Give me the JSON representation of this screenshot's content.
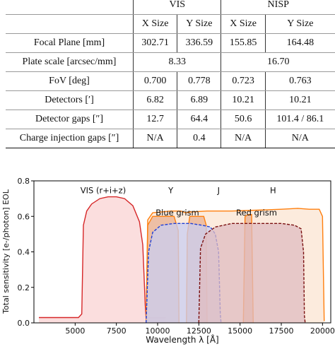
{
  "table": {
    "group_headers": [
      "VIS",
      "NISP"
    ],
    "sub_headers": [
      "X Size",
      "Y Size",
      "X Size",
      "Y Size"
    ],
    "rows": [
      {
        "label": "Focal Plane [mm]",
        "cells": [
          "302.71",
          "336.59",
          "155.85",
          "164.48"
        ]
      },
      {
        "label": "Plate scale [arcsec/mm]",
        "merged": [
          "8.33",
          "16.70"
        ]
      },
      {
        "label": "FoV [deg]",
        "cells": [
          "0.700",
          "0.778",
          "0.723",
          "0.763"
        ]
      },
      {
        "label": "Detectors [′]",
        "cells": [
          "6.82",
          "6.89",
          "10.21",
          "10.21"
        ]
      },
      {
        "label": "Detector gaps [″]",
        "cells": [
          "12.7",
          "64.4",
          "50.6",
          "101.4 / 86.1"
        ]
      },
      {
        "label": "Charge injection gaps [″]",
        "cells": [
          "N/A",
          "0.4",
          "N/A",
          "N/A"
        ]
      }
    ]
  },
  "chart_data": {
    "type": "area",
    "xlabel": "Wavelength λ [Å]",
    "ylabel": "Total sensitivity [e-/photon] EOL",
    "xlim": [
      2500,
      20500
    ],
    "ylim": [
      0,
      0.8
    ],
    "xticks": [
      5000,
      7500,
      10000,
      12500,
      15000,
      17500,
      20000
    ],
    "yticks": [
      0.0,
      0.2,
      0.4,
      0.6,
      0.8
    ],
    "tick_labels_y": [
      "0.0",
      "0.2",
      "0.4",
      "0.6",
      "0.8"
    ],
    "annotations": [
      {
        "text": "VIS (r+i+z)",
        "x": 6700,
        "y": 0.73
      },
      {
        "text": "Y",
        "x": 10800,
        "y": 0.73
      },
      {
        "text": "J",
        "x": 13700,
        "y": 0.73
      },
      {
        "text": "H",
        "x": 17000,
        "y": 0.73
      },
      {
        "text": "Blue grism",
        "x": 11200,
        "y": 0.605
      },
      {
        "text": "Red grism",
        "x": 16000,
        "y": 0.605
      }
    ],
    "series": [
      {
        "color": "#d62728",
        "fill": "#f9d3d3",
        "dash": false,
        "points": [
          [
            2800,
            0.03
          ],
          [
            4500,
            0.03
          ],
          [
            5200,
            0.03
          ],
          [
            5400,
            0.05
          ],
          [
            5500,
            0.55
          ],
          [
            5700,
            0.63
          ],
          [
            6000,
            0.67
          ],
          [
            6500,
            0.7
          ],
          [
            7000,
            0.71
          ],
          [
            7500,
            0.71
          ],
          [
            8000,
            0.7
          ],
          [
            8500,
            0.66
          ],
          [
            8900,
            0.57
          ],
          [
            9100,
            0.44
          ],
          [
            9200,
            0.22
          ],
          [
            9250,
            0.1
          ],
          [
            9300,
            0.03
          ],
          [
            10500,
            0.03
          ]
        ]
      },
      {
        "color": "#ff7f0e",
        "fill": "#fbe4d2",
        "dash": false,
        "points": [
          [
            9300,
            0.0
          ],
          [
            9400,
            0.58
          ],
          [
            9700,
            0.62
          ],
          [
            10800,
            0.63
          ],
          [
            11400,
            0.63
          ],
          [
            11700,
            0.62
          ],
          [
            12000,
            0.625
          ],
          [
            13000,
            0.63
          ],
          [
            14500,
            0.63
          ],
          [
            16000,
            0.635
          ],
          [
            17500,
            0.64
          ],
          [
            18500,
            0.645
          ],
          [
            19200,
            0.64
          ],
          [
            19800,
            0.64
          ],
          [
            20000,
            0.6
          ],
          [
            20100,
            0.01
          ]
        ]
      },
      {
        "color": "#ff7f0e",
        "fill": "#e8b091",
        "dash": false,
        "points": [
          [
            9300,
            0.0
          ],
          [
            9400,
            0.55
          ],
          [
            9700,
            0.6
          ],
          [
            10500,
            0.6
          ],
          [
            11000,
            0.6
          ],
          [
            11250,
            0.52
          ],
          [
            11300,
            0.0
          ]
        ]
      },
      {
        "color": "#ff7f0e",
        "fill": "#e8b091",
        "dash": false,
        "points": [
          [
            11750,
            0.0
          ],
          [
            11800,
            0.5
          ],
          [
            11950,
            0.6
          ],
          [
            12400,
            0.6
          ],
          [
            12800,
            0.6
          ],
          [
            12950,
            0.55
          ],
          [
            13000,
            0.0
          ]
        ]
      },
      {
        "color": "#ff7f0e",
        "fill": "#e8b091",
        "dash": false,
        "points": [
          [
            15200,
            0.0
          ],
          [
            15300,
            0.6
          ],
          [
            15500,
            0.61
          ],
          [
            15700,
            0.61
          ],
          [
            15800,
            0.0
          ]
        ]
      },
      {
        "color": "#1f3fd6",
        "fill": "#c9cdf0",
        "dash": true,
        "points": [
          [
            9300,
            0.0
          ],
          [
            9450,
            0.4
          ],
          [
            9700,
            0.51
          ],
          [
            10200,
            0.55
          ],
          [
            11000,
            0.56
          ],
          [
            12000,
            0.56
          ],
          [
            12700,
            0.55
          ],
          [
            13200,
            0.54
          ],
          [
            13500,
            0.5
          ],
          [
            13700,
            0.4
          ],
          [
            13800,
            0.05
          ],
          [
            13850,
            0.0
          ]
        ]
      },
      {
        "color": "#7a1010",
        "fill": "#e0bcc0",
        "dash": true,
        "points": [
          [
            12500,
            0.0
          ],
          [
            12600,
            0.42
          ],
          [
            12900,
            0.5
          ],
          [
            13500,
            0.54
          ],
          [
            14500,
            0.56
          ],
          [
            15500,
            0.56
          ],
          [
            16500,
            0.56
          ],
          [
            17500,
            0.56
          ],
          [
            18300,
            0.55
          ],
          [
            18700,
            0.53
          ],
          [
            18850,
            0.4
          ],
          [
            18900,
            0.04
          ],
          [
            18950,
            0.0
          ]
        ]
      }
    ]
  }
}
